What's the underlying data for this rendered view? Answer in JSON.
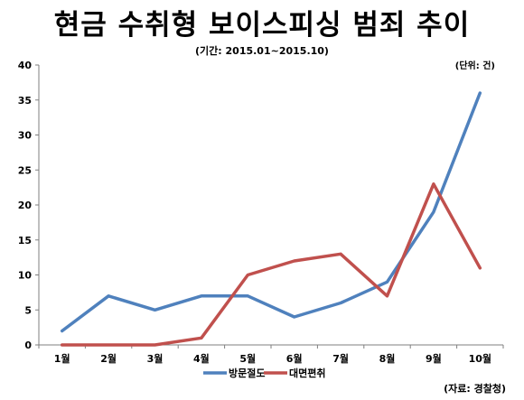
{
  "chart_data": {
    "type": "line",
    "title": "현금 수취형 보이스피싱 범죄 추이",
    "subtitle": "(기간: 2015.01~2015.10)",
    "unit_note": "(단위: 건)",
    "source_note": "(자료: 경찰청)",
    "categories": [
      "1월",
      "2월",
      "3월",
      "4월",
      "5월",
      "6월",
      "7월",
      "8월",
      "9월",
      "10월"
    ],
    "series": [
      {
        "name": "방문절도",
        "color": "#4F81BD",
        "values": [
          2,
          7,
          5,
          7,
          7,
          4,
          6,
          9,
          19,
          36
        ]
      },
      {
        "name": "대면편취",
        "color": "#C0504D",
        "values": [
          0,
          0,
          0,
          1,
          10,
          12,
          13,
          7,
          23,
          11
        ]
      }
    ],
    "ylim": [
      0,
      40
    ],
    "yticks": [
      0,
      5,
      10,
      15,
      20,
      25,
      30,
      35,
      40
    ],
    "grid": false,
    "legend_position": "bottom"
  }
}
